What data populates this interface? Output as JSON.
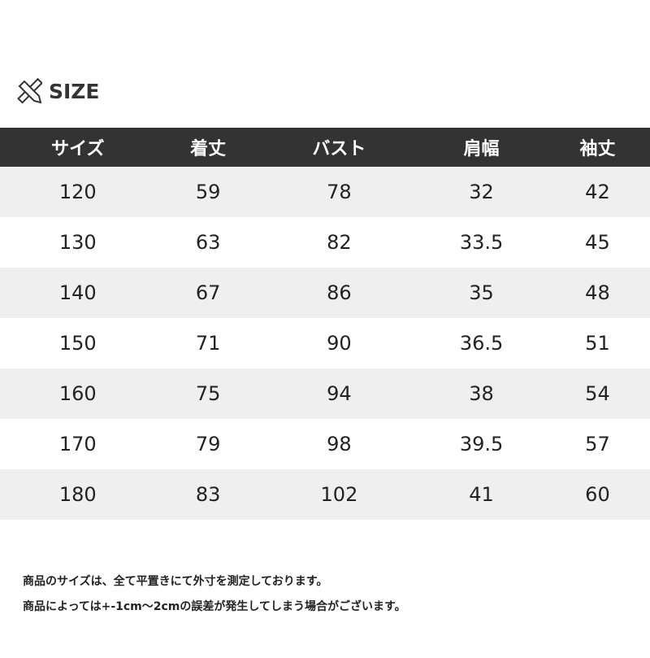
{
  "title": {
    "icon": "ruler-pencil-icon",
    "label": "SIZE"
  },
  "table": {
    "headers": [
      "サイズ",
      "着丈",
      "バスト",
      "肩幅",
      "袖丈"
    ],
    "rows": [
      [
        "120",
        "59",
        "78",
        "32",
        "42"
      ],
      [
        "130",
        "63",
        "82",
        "33.5",
        "45"
      ],
      [
        "140",
        "67",
        "86",
        "35",
        "48"
      ],
      [
        "150",
        "71",
        "90",
        "36.5",
        "51"
      ],
      [
        "160",
        "75",
        "94",
        "38",
        "54"
      ],
      [
        "170",
        "79",
        "98",
        "39.5",
        "57"
      ],
      [
        "180",
        "83",
        "102",
        "41",
        "60"
      ]
    ]
  },
  "notes": [
    "商品のサイズは、全て平置きにて外寸を測定しております。",
    "商品によっては+-1cm～2cmの誤差が発生してしまう場合がございます。"
  ],
  "colors": {
    "header_bg": "#333333",
    "row_alt": "#efefef"
  }
}
